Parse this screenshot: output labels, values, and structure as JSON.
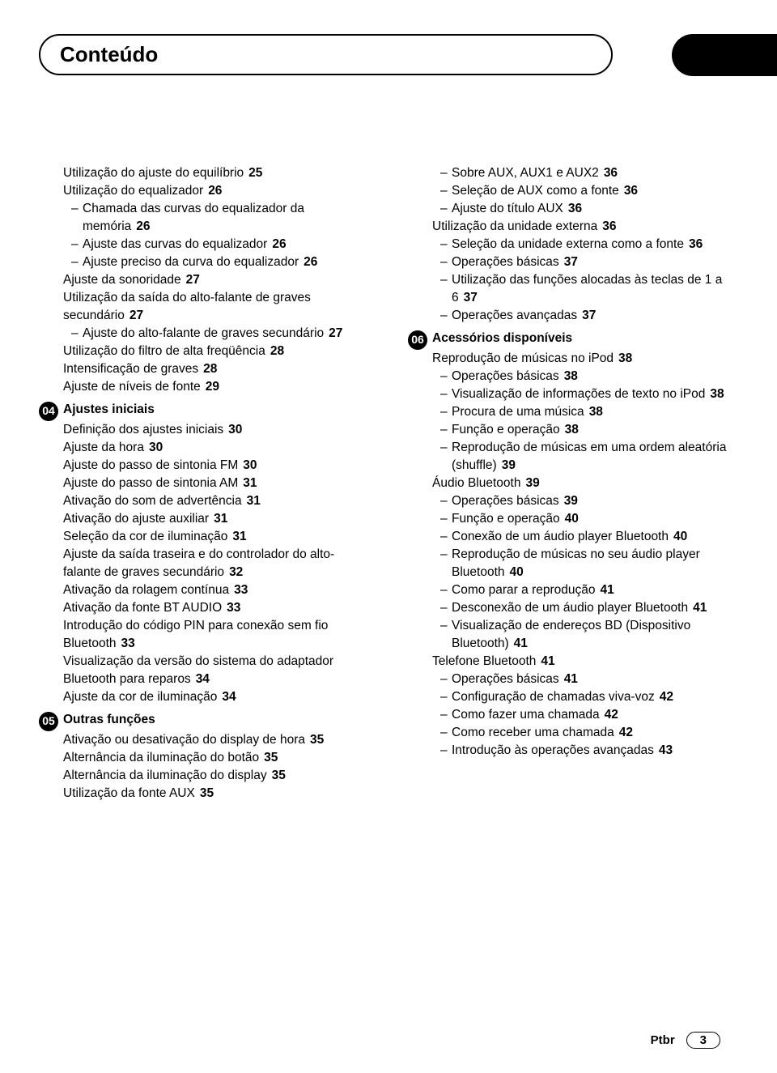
{
  "colors": {
    "text": "#000000",
    "background": "#ffffff",
    "accent": "#000000"
  },
  "header": {
    "title": "Conteúdo"
  },
  "footer": {
    "lang": "Ptbr",
    "page": "3"
  },
  "left": {
    "cont": {
      "items": [
        {
          "text": "Utilização do ajuste do equilíbrio",
          "page": "25"
        },
        {
          "text": "Utilização do equalizador",
          "page": "26",
          "subs": [
            {
              "text": "Chamada das curvas do equalizador da memória",
              "page": "26"
            },
            {
              "text": "Ajuste das curvas do equalizador",
              "page": "26"
            },
            {
              "text": "Ajuste preciso da curva do equalizador",
              "page": "26"
            }
          ]
        },
        {
          "text": "Ajuste da sonoridade",
          "page": "27"
        },
        {
          "text": "Utilização da saída do alto-falante de graves secundário",
          "page": "27",
          "subs": [
            {
              "text": "Ajuste do alto-falante de graves secundário",
              "page": "27"
            }
          ]
        },
        {
          "text": "Utilização do filtro de alta freqüência",
          "page": "28"
        },
        {
          "text": "Intensificação de graves",
          "page": "28"
        },
        {
          "text": "Ajuste de níveis de fonte",
          "page": "29"
        }
      ]
    },
    "s04": {
      "num": "04",
      "title": "Ajustes iniciais",
      "items": [
        {
          "text": "Definição dos ajustes iniciais",
          "page": "30"
        },
        {
          "text": "Ajuste da hora",
          "page": "30"
        },
        {
          "text": "Ajuste do passo de sintonia FM",
          "page": "30"
        },
        {
          "text": "Ajuste do passo de sintonia AM",
          "page": "31"
        },
        {
          "text": "Ativação do som de advertência",
          "page": "31"
        },
        {
          "text": "Ativação do ajuste auxiliar",
          "page": "31"
        },
        {
          "text": "Seleção da cor de iluminação",
          "page": "31"
        },
        {
          "text": "Ajuste da saída traseira e do controlador do alto-falante de graves secundário",
          "page": "32"
        },
        {
          "text": "Ativação da rolagem contínua",
          "page": "33"
        },
        {
          "text": "Ativação da fonte BT AUDIO",
          "page": "33"
        },
        {
          "text": "Introdução do código PIN para conexão sem fio Bluetooth",
          "page": "33"
        },
        {
          "text": "Visualização da versão do sistema do adaptador Bluetooth para reparos",
          "page": "34"
        },
        {
          "text": "Ajuste da cor de iluminação",
          "page": "34"
        }
      ]
    },
    "s05": {
      "num": "05",
      "title": "Outras funções",
      "items": [
        {
          "text": "Ativação ou desativação do display de hora",
          "page": "35"
        },
        {
          "text": "Alternância da iluminação do botão",
          "page": "35"
        },
        {
          "text": "Alternância da iluminação do display",
          "page": "35"
        },
        {
          "text": "Utilização da fonte AUX",
          "page": "35"
        }
      ]
    }
  },
  "right": {
    "cont": {
      "subs_top": [
        {
          "text": "Sobre AUX, AUX1 e AUX2",
          "page": "36"
        },
        {
          "text": "Seleção de AUX como a fonte",
          "page": "36"
        },
        {
          "text": "Ajuste do título AUX",
          "page": "36"
        }
      ],
      "item_mid": {
        "text": "Utilização da unidade externa",
        "page": "36"
      },
      "subs_mid": [
        {
          "text": "Seleção da unidade externa como a fonte",
          "page": "36"
        },
        {
          "text": "Operações básicas",
          "page": "37"
        },
        {
          "text": "Utilização das funções alocadas às teclas de 1 a 6",
          "page": "37"
        },
        {
          "text": "Operações avançadas",
          "page": "37"
        }
      ]
    },
    "s06": {
      "num": "06",
      "title": "Acessórios disponíveis",
      "g1": {
        "text": "Reprodução de músicas no iPod",
        "page": "38"
      },
      "g1_subs": [
        {
          "text": "Operações básicas",
          "page": "38"
        },
        {
          "text": "Visualização de informações de texto no iPod",
          "page": "38"
        },
        {
          "text": "Procura de uma música",
          "page": "38"
        },
        {
          "text": "Função e operação",
          "page": "38"
        },
        {
          "text": "Reprodução de músicas em uma ordem aleatória (shuffle)",
          "page": "39"
        }
      ],
      "g2": {
        "text": "Áudio Bluetooth",
        "page": "39"
      },
      "g2_subs": [
        {
          "text": "Operações básicas",
          "page": "39"
        },
        {
          "text": "Função e operação",
          "page": "40"
        },
        {
          "text": "Conexão de um áudio player Bluetooth",
          "page": "40"
        },
        {
          "text": "Reprodução de músicas no seu áudio player Bluetooth",
          "page": "40"
        },
        {
          "text": "Como parar a reprodução",
          "page": "41"
        },
        {
          "text": "Desconexão de um áudio player Bluetooth",
          "page": "41"
        },
        {
          "text": "Visualização de endereços BD (Dispositivo Bluetooth)",
          "page": "41"
        }
      ],
      "g3": {
        "text": "Telefone Bluetooth",
        "page": "41"
      },
      "g3_subs": [
        {
          "text": "Operações básicas",
          "page": "41"
        },
        {
          "text": "Configuração de chamadas viva-voz",
          "page": "42"
        },
        {
          "text": "Como fazer uma chamada",
          "page": "42"
        },
        {
          "text": "Como receber uma chamada",
          "page": "42"
        },
        {
          "text": "Introdução às operações avançadas",
          "page": "43"
        }
      ]
    }
  }
}
